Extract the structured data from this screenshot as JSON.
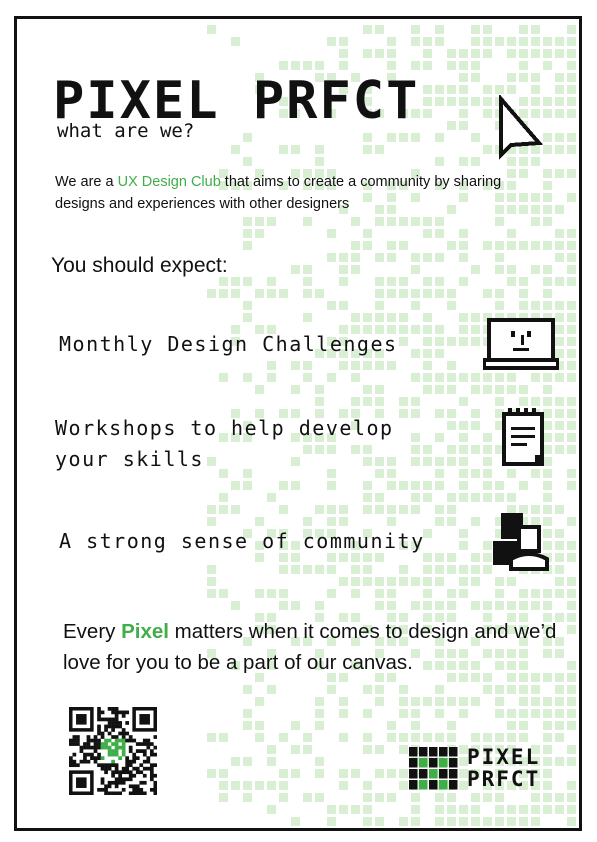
{
  "poster": {
    "title": "PIXEL PRFCT",
    "subtitle": "what are we?",
    "intro": {
      "before": "We are a ",
      "highlight": "UX Design Club",
      "after": " that aims to create a community by sharing designs and experiences with other designers"
    },
    "expect_heading": "You should expect:",
    "items": [
      {
        "text": "Monthly Design Challenges",
        "icon": "laptop-icon"
      },
      {
        "line1": "Workshops to help develop",
        "line2": "your skills",
        "icon": "notepad-icon"
      },
      {
        "text": "A strong sense of community",
        "icon": "people-icon"
      }
    ],
    "outro": {
      "before": "Every ",
      "highlight": "Pixel",
      "after": " matters when it comes to design and we’d love for you to be a part of our canvas."
    },
    "logo": {
      "line1": "PIXEL",
      "line2": "PRFCT"
    },
    "colors": {
      "accent": "#3fae49",
      "pixel_bg": "#d9efd4",
      "ink": "#111111"
    }
  }
}
